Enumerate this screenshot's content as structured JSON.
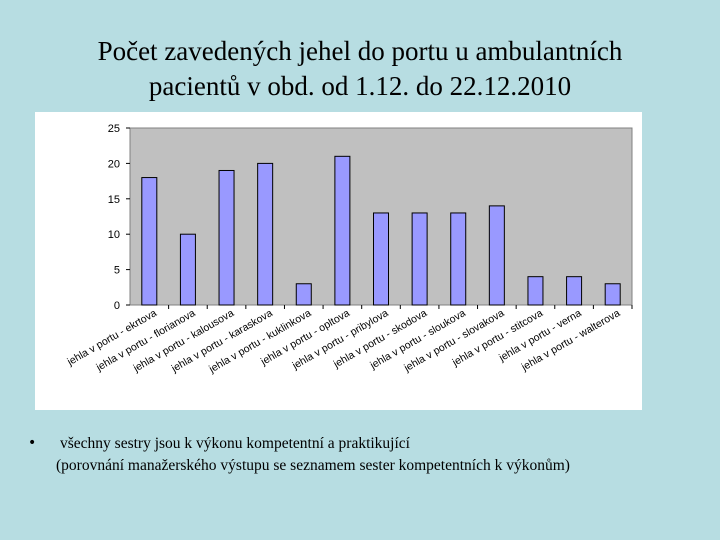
{
  "slide": {
    "title_line1": "Počet zavedených jehel do portu u ambulantních",
    "title_line2": "pacientů v obd. od 1.12. do 22.12.2010",
    "bullet_symbol": "•",
    "bullet_line1": "všechny sestry jsou k výkonu kompetentní a praktikující",
    "bullet_line2": "(porovnání manažerského výstupu se seznamem sester kompetentních k výkonům)"
  },
  "colors": {
    "slide_background": "#b7dde2",
    "plot_area": "#c0c0c0",
    "bar_fill": "#9999ff",
    "bar_stroke": "#000000"
  },
  "chart_data": {
    "type": "bar",
    "categories": [
      "jehla v portu - ekrtova",
      "jehla v portu - florianova",
      "jehla v portu - kalousova",
      "jehla v portu - karaskova",
      "jehla v portu - kuklinkova",
      "jehla v portu - opltova",
      "jehla v portu - pribylova",
      "jehla v portu - skodova",
      "jehla v portu - sloukova",
      "jehla v portu - slovakova",
      "jehla v portu - stitcova",
      "jehla v portu - verna",
      "jehla v portu - walterova"
    ],
    "values": [
      18,
      10,
      19,
      20,
      3,
      21,
      13,
      13,
      13,
      14,
      4,
      4,
      3
    ],
    "yticks": [
      "0",
      "5",
      "10",
      "15",
      "20",
      "25"
    ],
    "ylim": [
      0,
      25
    ],
    "grid": false,
    "legend": false
  }
}
